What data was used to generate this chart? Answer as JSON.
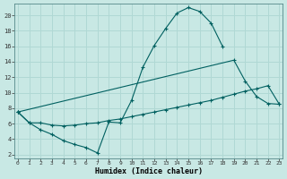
{
  "xlabel": "Humidex (Indice chaleur)",
  "bg_color": "#c8e8e4",
  "grid_color": "#b0d8d4",
  "line_color": "#006060",
  "xlim": [
    -0.3,
    23.3
  ],
  "ylim": [
    1.5,
    21.5
  ],
  "xtick_vals": [
    0,
    1,
    2,
    3,
    4,
    5,
    6,
    7,
    8,
    9,
    10,
    11,
    12,
    13,
    14,
    15,
    16,
    17,
    18,
    19,
    20,
    21,
    22,
    23
  ],
  "ytick_vals": [
    2,
    4,
    6,
    8,
    10,
    12,
    14,
    16,
    18,
    20
  ],
  "c1_x": [
    0,
    1,
    2,
    3,
    4,
    5,
    6,
    7,
    8,
    9,
    10,
    11,
    12,
    13,
    14,
    15,
    16,
    17,
    18
  ],
  "c1_y": [
    7.5,
    6.1,
    5.2,
    4.6,
    3.8,
    3.3,
    2.9,
    2.2,
    6.2,
    6.1,
    9.0,
    13.3,
    16.1,
    18.3,
    20.3,
    21.0,
    20.5,
    19.0,
    16.0
  ],
  "c2_x": [
    0,
    1,
    2,
    3,
    4,
    5,
    6,
    7,
    8,
    9,
    10,
    11,
    12,
    13,
    14,
    15,
    16,
    17,
    18,
    19,
    20,
    21,
    22,
    23
  ],
  "c2_y": [
    7.5,
    6.1,
    6.1,
    5.8,
    5.7,
    5.8,
    6.0,
    6.1,
    6.4,
    6.6,
    6.9,
    7.2,
    7.5,
    7.8,
    8.1,
    8.4,
    8.7,
    9.0,
    9.4,
    9.8,
    10.2,
    10.5,
    10.9,
    8.5
  ],
  "c3_x": [
    0,
    19,
    20,
    21,
    22,
    23
  ],
  "c3_y": [
    7.5,
    14.2,
    11.5,
    9.5,
    8.6,
    8.5
  ]
}
